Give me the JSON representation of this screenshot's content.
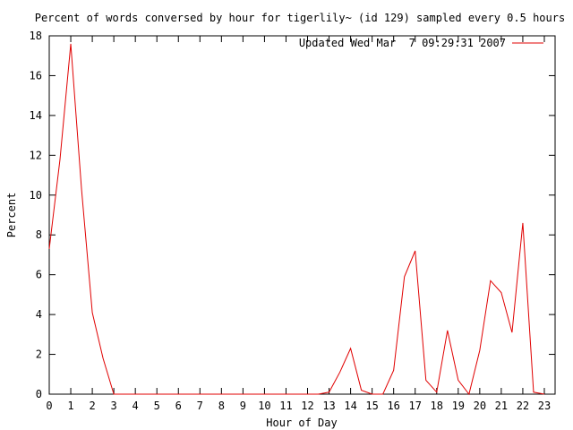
{
  "chart_data": {
    "type": "line",
    "title": "Percent of words conversed by hour for tigerlily~ (id 129) sampled every 0.5 hours",
    "xlabel": "Hour of Day",
    "ylabel": "Percent",
    "xlim": [
      0,
      23.5
    ],
    "ylim": [
      0,
      18
    ],
    "xticks": [
      "0",
      "1",
      "2",
      "3",
      "4",
      "5",
      "6",
      "7",
      "8",
      "9",
      "10",
      "11",
      "12",
      "13",
      "14",
      "15",
      "16",
      "17",
      "18",
      "19",
      "20",
      "21",
      "22",
      "23"
    ],
    "yticks": [
      "0",
      "2",
      "4",
      "6",
      "8",
      "10",
      "12",
      "14",
      "16",
      "18"
    ],
    "grid": false,
    "legend_position": "top-right",
    "series": [
      {
        "name": "Updated Wed Mar  7 09:29:31 2007",
        "color": "#e00000",
        "x": [
          0,
          0.5,
          1,
          1.5,
          2,
          2.5,
          3,
          3.5,
          4,
          4.5,
          5,
          5.5,
          6,
          6.5,
          7,
          7.5,
          8,
          8.5,
          9,
          9.5,
          10,
          10.5,
          11,
          11.5,
          12,
          12.5,
          13,
          13.5,
          14,
          14.5,
          15,
          15.5,
          16,
          16.5,
          17,
          17.5,
          18,
          18.5,
          19,
          19.5,
          20,
          20.5,
          21,
          21.5,
          22,
          22.5,
          23
        ],
        "y": [
          7.3,
          11.8,
          17.6,
          10.3,
          4.1,
          1.8,
          0,
          0,
          0,
          0,
          0,
          0,
          0,
          0,
          0,
          0,
          0,
          0,
          0,
          0,
          0,
          0,
          0,
          0,
          0,
          0,
          0.1,
          1.1,
          2.3,
          0.2,
          0,
          0,
          1.2,
          5.9,
          7.2,
          0.7,
          0.1,
          3.2,
          0.7,
          0,
          2.2,
          5.7,
          5.1,
          3.1,
          8.6,
          0.1,
          0
        ]
      }
    ]
  }
}
